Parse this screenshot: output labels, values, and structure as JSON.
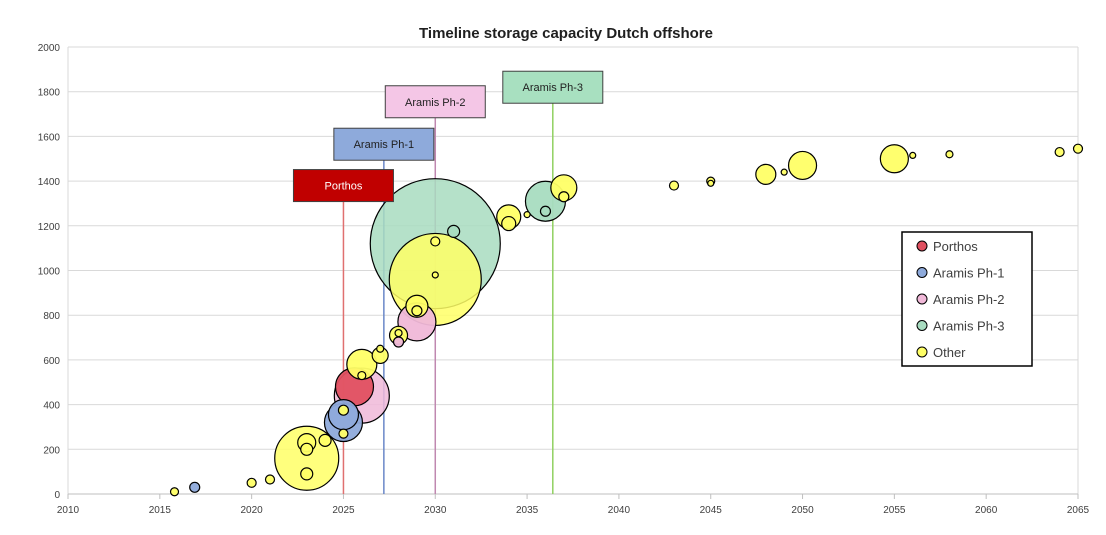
{
  "chart_data": {
    "type": "scatter",
    "subtype": "bubble",
    "title": "Timeline storage capacity Dutch offshore",
    "xlabel": "",
    "ylabel": "",
    "xlim": [
      2010,
      2065
    ],
    "ylim": [
      0,
      2000
    ],
    "x_ticks": [
      2010,
      2015,
      2020,
      2025,
      2030,
      2035,
      2040,
      2045,
      2050,
      2055,
      2060,
      2065
    ],
    "y_ticks": [
      0,
      200,
      400,
      600,
      800,
      1000,
      1200,
      1400,
      1600,
      1800,
      2000
    ],
    "x_tick_labels": [
      "2010",
      "2015",
      "2020",
      "2025",
      "2030",
      "2035",
      "2040",
      "2045",
      "2050",
      "2055",
      "2060",
      "2065"
    ],
    "y_tick_labels": [
      "0",
      "200",
      "400",
      "600",
      "800",
      "1000",
      "1200",
      "1400",
      "1600",
      "1800",
      "2000"
    ],
    "grid": "horizontal",
    "legend_position": "right",
    "series": [
      {
        "name": "Porthos",
        "color": "#c00000",
        "fill": "#e05060",
        "points": [
          {
            "x": 2025.6,
            "y": 480,
            "size": 38
          }
        ]
      },
      {
        "name": "Aramis Ph-1",
        "color": "#2f4f8f",
        "fill": "#8eaadb",
        "points": [
          {
            "x": 2016.9,
            "y": 30,
            "size": 10
          },
          {
            "x": 2025.0,
            "y": 320,
            "size": 38
          },
          {
            "x": 2025.0,
            "y": 355,
            "size": 30
          }
        ]
      },
      {
        "name": "Aramis Ph-2",
        "color": "#b06090",
        "fill": "#f0b8d8",
        "points": [
          {
            "x": 2026.0,
            "y": 440,
            "size": 55
          },
          {
            "x": 2029.0,
            "y": 770,
            "size": 38
          },
          {
            "x": 2028.0,
            "y": 680,
            "size": 10
          }
        ]
      },
      {
        "name": "Aramis Ph-3",
        "color": "#2f7f5f",
        "fill": "#a8dcc0",
        "points": [
          {
            "x": 2030.0,
            "y": 1120,
            "size": 130
          },
          {
            "x": 2036.0,
            "y": 1310,
            "size": 40
          },
          {
            "x": 2031.0,
            "y": 1175,
            "size": 12
          },
          {
            "x": 2036.0,
            "y": 1265,
            "size": 10
          }
        ]
      },
      {
        "name": "Other",
        "color": "#333333",
        "fill": "#ffff66",
        "points": [
          {
            "x": 2015.8,
            "y": 10,
            "size": 8
          },
          {
            "x": 2020.0,
            "y": 50,
            "size": 9
          },
          {
            "x": 2021.0,
            "y": 65,
            "size": 9
          },
          {
            "x": 2023.0,
            "y": 160,
            "size": 64
          },
          {
            "x": 2023.0,
            "y": 230,
            "size": 18
          },
          {
            "x": 2023.0,
            "y": 200,
            "size": 12
          },
          {
            "x": 2023.0,
            "y": 90,
            "size": 12
          },
          {
            "x": 2024.0,
            "y": 240,
            "size": 12
          },
          {
            "x": 2025.0,
            "y": 270,
            "size": 9
          },
          {
            "x": 2025.0,
            "y": 375,
            "size": 10
          },
          {
            "x": 2026.0,
            "y": 580,
            "size": 30
          },
          {
            "x": 2026.0,
            "y": 530,
            "size": 8
          },
          {
            "x": 2027.0,
            "y": 620,
            "size": 16
          },
          {
            "x": 2027.0,
            "y": 650,
            "size": 7
          },
          {
            "x": 2028.0,
            "y": 710,
            "size": 18
          },
          {
            "x": 2028.0,
            "y": 720,
            "size": 7
          },
          {
            "x": 2029.0,
            "y": 840,
            "size": 22
          },
          {
            "x": 2029.0,
            "y": 820,
            "size": 10
          },
          {
            "x": 2030.0,
            "y": 960,
            "size": 92
          },
          {
            "x": 2030.0,
            "y": 980,
            "size": 6
          },
          {
            "x": 2030.0,
            "y": 1130,
            "size": 9
          },
          {
            "x": 2034.0,
            "y": 1240,
            "size": 24
          },
          {
            "x": 2034.0,
            "y": 1210,
            "size": 14
          },
          {
            "x": 2035.0,
            "y": 1250,
            "size": 6
          },
          {
            "x": 2037.0,
            "y": 1370,
            "size": 26
          },
          {
            "x": 2037.0,
            "y": 1330,
            "size": 10
          },
          {
            "x": 2043.0,
            "y": 1380,
            "size": 9
          },
          {
            "x": 2045.0,
            "y": 1400,
            "size": 8
          },
          {
            "x": 2045.0,
            "y": 1390,
            "size": 6
          },
          {
            "x": 2048.0,
            "y": 1430,
            "size": 20
          },
          {
            "x": 2049.0,
            "y": 1440,
            "size": 6
          },
          {
            "x": 2050.0,
            "y": 1470,
            "size": 28
          },
          {
            "x": 2055.0,
            "y": 1500,
            "size": 28
          },
          {
            "x": 2056.0,
            "y": 1515,
            "size": 6
          },
          {
            "x": 2058.0,
            "y": 1520,
            "size": 7
          },
          {
            "x": 2064.0,
            "y": 1530,
            "size": 9
          },
          {
            "x": 2065.0,
            "y": 1545,
            "size": 9
          }
        ]
      }
    ],
    "milestones": [
      {
        "name": "Porthos",
        "x": 2025.0,
        "label_y": 1380,
        "color": "#e07070",
        "box_fill": "#c00000",
        "text_color": "#ffffff"
      },
      {
        "name": "Aramis Ph-1",
        "x": 2027.2,
        "label_y": 1565,
        "color": "#6a88c8",
        "box_fill": "#8eaadb",
        "text_color": "#1f1f1f"
      },
      {
        "name": "Aramis Ph-2",
        "x": 2030.0,
        "label_y": 1755,
        "color": "#c088b0",
        "box_fill": "#f4c6e6",
        "text_color": "#1f1f1f"
      },
      {
        "name": "Aramis Ph-3",
        "x": 2036.4,
        "label_y": 1820,
        "color": "#90d060",
        "box_fill": "#a8e0c0",
        "text_color": "#1f1f1f"
      }
    ]
  }
}
